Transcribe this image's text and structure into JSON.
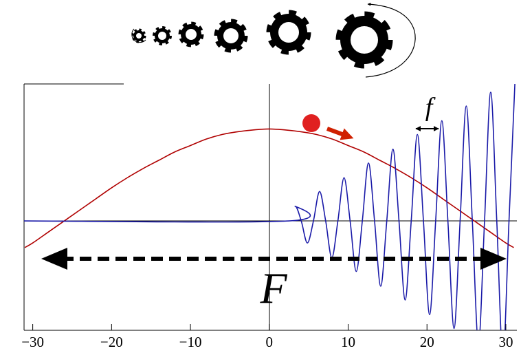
{
  "chart_data": {
    "type": "line",
    "series": [
      {
        "color": "#b00000",
        "x": [
          -31,
          -30,
          -28,
          -26,
          -24,
          -22,
          -20,
          -18,
          -16,
          -14,
          -12,
          -10,
          -8,
          -6,
          -4,
          -2,
          0,
          2,
          4,
          6,
          8,
          10,
          12,
          14,
          16,
          18,
          20,
          22,
          24,
          26,
          28,
          30,
          31
        ],
        "values": [
          -0.29,
          -0.24,
          -0.12,
          0.0,
          0.12,
          0.24,
          0.36,
          0.47,
          0.57,
          0.66,
          0.75,
          0.82,
          0.89,
          0.94,
          0.97,
          0.99,
          1.0,
          0.99,
          0.97,
          0.94,
          0.89,
          0.82,
          0.75,
          0.66,
          0.57,
          0.47,
          0.36,
          0.24,
          0.12,
          0.0,
          -0.12,
          -0.24,
          -0.29
        ]
      },
      {
        "color": "#1a1aa8",
        "x": [
          -31.1,
          2.5,
          3.28,
          4.05,
          4.83,
          5.6,
          6.38,
          7.15,
          7.93,
          8.7,
          9.48,
          10.25,
          11.03,
          11.8,
          12.58,
          13.35,
          14.13,
          14.9,
          15.68,
          16.45,
          17.23,
          18.0,
          18.78,
          19.55,
          20.33,
          21.1,
          21.88,
          22.65,
          23.43,
          24.2,
          24.98,
          25.75,
          26.53,
          27.3,
          28.08,
          28.85,
          29.63,
          30.4,
          31.18
        ],
        "values": [
          0,
          0,
          0.16,
          0,
          -0.24,
          0,
          0.32,
          0,
          -0.4,
          0,
          0.47,
          0,
          -0.55,
          0,
          0.63,
          0,
          -0.71,
          0,
          0.78,
          0,
          -0.86,
          0,
          0.94,
          0,
          -1.02,
          0,
          1.09,
          0,
          -1.17,
          0,
          1.25,
          0,
          -1.33,
          0,
          1.4,
          0,
          -1.48,
          0,
          1.56
        ]
      }
    ],
    "xlim": [
      -31.1,
      31.4
    ],
    "ylim": [
      -1.19,
      1.49
    ],
    "xticks": [
      {
        "value": -30,
        "label": "−30"
      },
      {
        "value": -20,
        "label": "−20"
      },
      {
        "value": -10,
        "label": "−10"
      },
      0,
      10,
      20,
      30
    ],
    "annotations": [
      "f",
      "F"
    ]
  }
}
